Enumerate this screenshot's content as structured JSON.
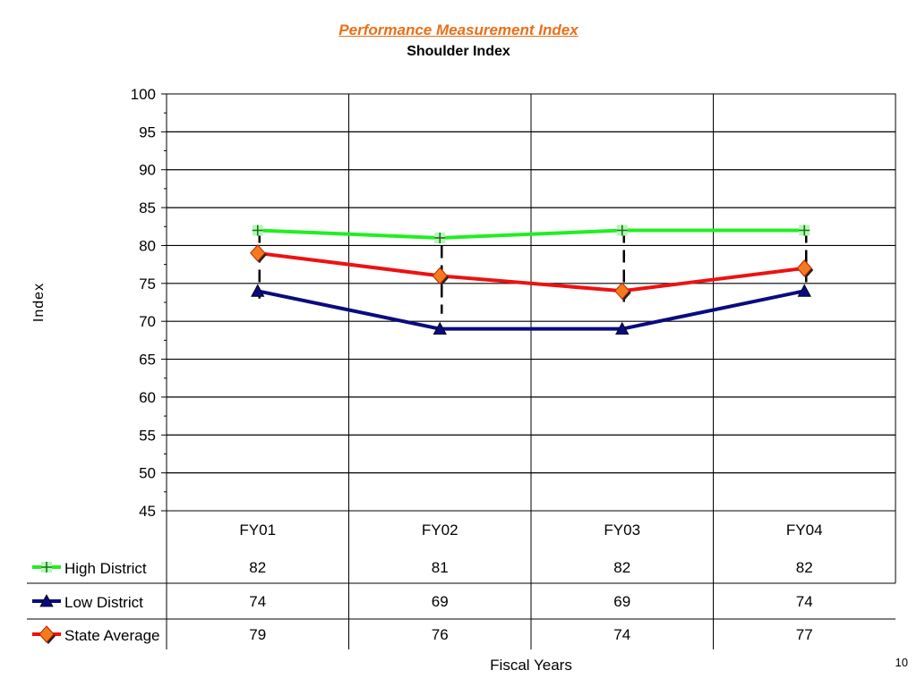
{
  "title": "Performance Measurement Index",
  "subtitle": "Shoulder Index",
  "page_number": "10",
  "chart_data": {
    "type": "line",
    "title": "Performance Measurement Index",
    "subtitle": "Shoulder Index",
    "xlabel": "Fiscal Years",
    "ylabel": "Index",
    "ylim": [
      45,
      100
    ],
    "y_ticks": [
      45,
      50,
      55,
      60,
      65,
      70,
      75,
      80,
      85,
      90,
      95,
      100
    ],
    "categories": [
      "FY01",
      "FY02",
      "FY03",
      "FY04"
    ],
    "grid": true,
    "data_table": true,
    "series": [
      {
        "name": "High District",
        "values": [
          82,
          81,
          82,
          82
        ],
        "color": "#22ee22",
        "marker": "plus"
      },
      {
        "name": "Low District",
        "values": [
          74,
          69,
          69,
          74
        ],
        "color": "#0a0a80",
        "marker": "triangle"
      },
      {
        "name": "State Average",
        "values": [
          79,
          76,
          74,
          77
        ],
        "color": "#ee1111",
        "marker": "diamond",
        "marker_fill": "#f47a1e"
      }
    ]
  }
}
